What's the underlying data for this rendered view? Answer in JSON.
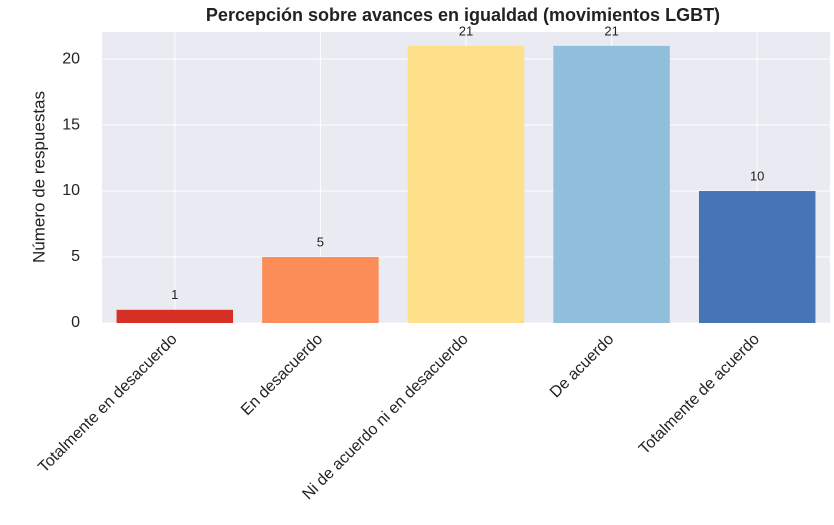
{
  "chart_data": {
    "type": "bar",
    "title": "Percepción sobre avances en igualdad (movimientos LGBT)",
    "ylabel": "Número de respuestas",
    "categories": [
      "Totalmente en desacuerdo",
      "En desacuerdo",
      "Ni de acuerdo ni en desacuerdo",
      "De acuerdo",
      "Totalmente de acuerdo"
    ],
    "values": [
      1,
      5,
      21,
      21,
      10
    ],
    "colors": [
      "#d73027",
      "#fc8d59",
      "#fee08b",
      "#91bfdb",
      "#4575b4"
    ],
    "ylim": [
      0,
      22.05
    ],
    "yticks": [
      0,
      5,
      10,
      15,
      20
    ],
    "grid": true
  }
}
